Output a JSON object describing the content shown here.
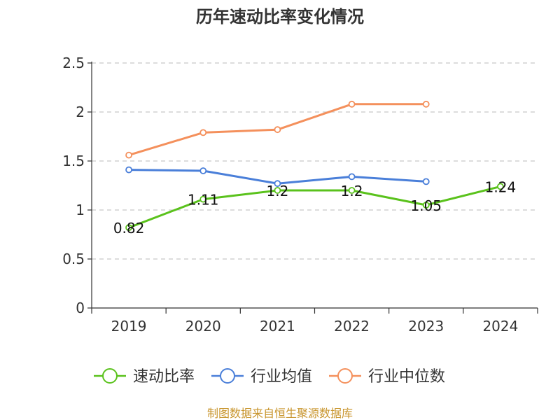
{
  "chart_data": {
    "type": "line",
    "title": "历年速动比率变化情况",
    "categories": [
      "2019",
      "2020",
      "2021",
      "2022",
      "2023",
      "2024"
    ],
    "ylim": [
      0,
      2.5
    ],
    "yticks": [
      "0",
      "0.5",
      "1",
      "1.5",
      "2",
      "2.5"
    ],
    "grid": "horizontal-dashed",
    "legend_position": "bottom",
    "series": [
      {
        "name": "速动比率",
        "color": "#5ac21c",
        "values": [
          0.82,
          1.11,
          1.2,
          1.2,
          1.05,
          1.24
        ],
        "labels": [
          "0.82",
          "1.11",
          "1.2",
          "1.2",
          "1.05",
          "1.24"
        ]
      },
      {
        "name": "行业均值",
        "color": "#4a7fd9",
        "values": [
          1.41,
          1.4,
          1.27,
          1.34,
          1.29,
          null
        ]
      },
      {
        "name": "行业中位数",
        "color": "#f4905c",
        "values": [
          1.56,
          1.79,
          1.82,
          2.08,
          2.08,
          null
        ]
      }
    ]
  },
  "source_text": "制图数据来自恒生聚源数据库"
}
